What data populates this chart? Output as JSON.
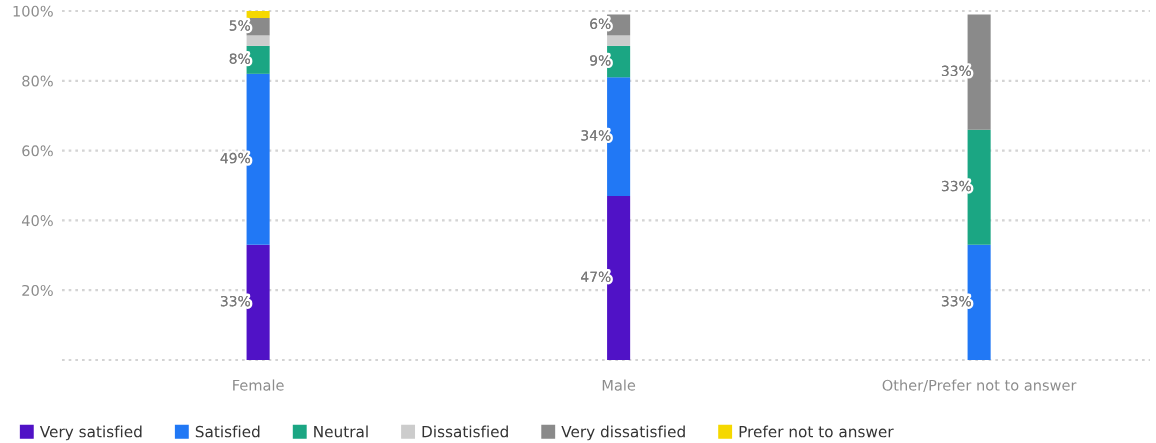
{
  "chart_data": {
    "type": "bar",
    "stacked": true,
    "categories": [
      "Female",
      "Male",
      "Other/Prefer not to answer"
    ],
    "series": [
      {
        "name": "Very satisfied",
        "color": "#5012c6",
        "values": [
          33,
          47,
          0
        ],
        "value_labels": [
          "33%",
          "47%",
          null
        ]
      },
      {
        "name": "Satisfied",
        "color": "#2178f5",
        "values": [
          49,
          34,
          33
        ],
        "value_labels": [
          "49%",
          "34%",
          "33%"
        ]
      },
      {
        "name": "Neutral",
        "color": "#1ba683",
        "values": [
          8,
          9,
          33
        ],
        "value_labels": [
          "8%",
          "9%",
          "33%"
        ]
      },
      {
        "name": "Dissatisfied",
        "color": "#cccccc",
        "values": [
          3,
          3,
          0
        ],
        "value_labels": [
          null,
          null,
          null
        ]
      },
      {
        "name": "Very dissatisfied",
        "color": "#8a8a8a",
        "values": [
          5,
          6,
          33
        ],
        "value_labels": [
          "5%",
          "6%",
          "33%"
        ]
      },
      {
        "name": "Prefer not to answer",
        "color": "#f5d800",
        "values": [
          2,
          0,
          0
        ],
        "value_labels": [
          null,
          null,
          null
        ]
      }
    ],
    "ylim": [
      0,
      100
    ],
    "yticks": [
      {
        "value": 0,
        "label": null
      },
      {
        "value": 20,
        "label": "20%"
      },
      {
        "value": 40,
        "label": "40%"
      },
      {
        "value": 60,
        "label": "60%"
      },
      {
        "value": 80,
        "label": "80%"
      },
      {
        "value": 100,
        "label": "100%"
      }
    ],
    "grid": "y",
    "legend": "bottom"
  }
}
